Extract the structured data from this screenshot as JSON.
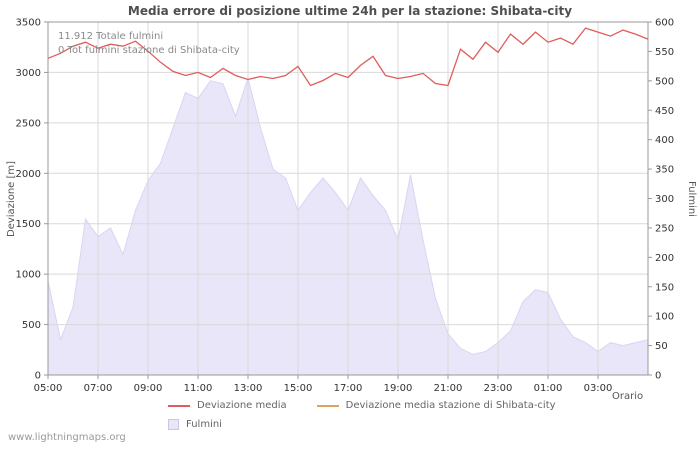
{
  "annotations": {
    "total_fulmini": "11.912 Totale fulmini",
    "station_fulmini": "0 Tot fulmini stazione di Shibata-city"
  },
  "footer": {
    "watermark": "www.lightningmaps.org"
  },
  "colors": {
    "grid": "#d9d9d9",
    "axis": "#9a9a9a",
    "title": "#4f4f4f",
    "text": "#333333",
    "muted": "#8a8a8a"
  },
  "chart_data": {
    "type": "line",
    "title": "Media errore di posizione ultime 24h per la stazione: Shibata-city",
    "xlabel": "Orario",
    "ylabel_left": "Deviazione [m]",
    "ylabel_right": "Fulmini",
    "x_start": "05:00",
    "x_step_minutes": 30,
    "x_tick_labels": [
      "05:00",
      "07:00",
      "09:00",
      "11:00",
      "13:00",
      "15:00",
      "17:00",
      "19:00",
      "21:00",
      "23:00",
      "01:00",
      "03:00"
    ],
    "ylim_left": [
      0,
      3500
    ],
    "ylim_right": [
      0,
      600
    ],
    "left_ticks": [
      0,
      500,
      1000,
      1500,
      2000,
      2500,
      3000,
      3500
    ],
    "right_ticks": [
      0,
      50,
      100,
      150,
      200,
      250,
      300,
      350,
      400,
      450,
      500,
      550,
      600
    ],
    "grid": true,
    "legend_position": "bottom",
    "series": [
      {
        "name": "Fulmini",
        "type": "area",
        "axis": "right",
        "color": "#e8e6f8",
        "values": [
          160,
          60,
          115,
          265,
          235,
          250,
          205,
          280,
          330,
          360,
          420,
          480,
          470,
          500,
          495,
          440,
          505,
          420,
          350,
          335,
          280,
          310,
          335,
          310,
          280,
          335,
          305,
          280,
          230,
          340,
          230,
          130,
          70,
          45,
          35,
          40,
          55,
          75,
          125,
          145,
          140,
          95,
          65,
          55,
          40,
          55,
          50,
          55,
          60
        ]
      },
      {
        "name": "Deviazione media",
        "type": "line",
        "axis": "left",
        "color": "#e05c5c",
        "values": [
          3140,
          3190,
          3260,
          3300,
          3240,
          3280,
          3260,
          3310,
          3210,
          3100,
          3010,
          2970,
          3000,
          2950,
          3040,
          2970,
          2930,
          2960,
          2940,
          2970,
          3060,
          2870,
          2920,
          2990,
          2950,
          3070,
          3160,
          2970,
          2940,
          2960,
          2990,
          2890,
          2870,
          3230,
          3130,
          3300,
          3200,
          3380,
          3280,
          3400,
          3300,
          3340,
          3280,
          3440,
          3400,
          3360,
          3420,
          3380,
          3330
        ]
      },
      {
        "name": "Deviazione media stazione di Shibata-city",
        "type": "line",
        "axis": "left",
        "color": "#dba35f",
        "values": []
      }
    ]
  }
}
